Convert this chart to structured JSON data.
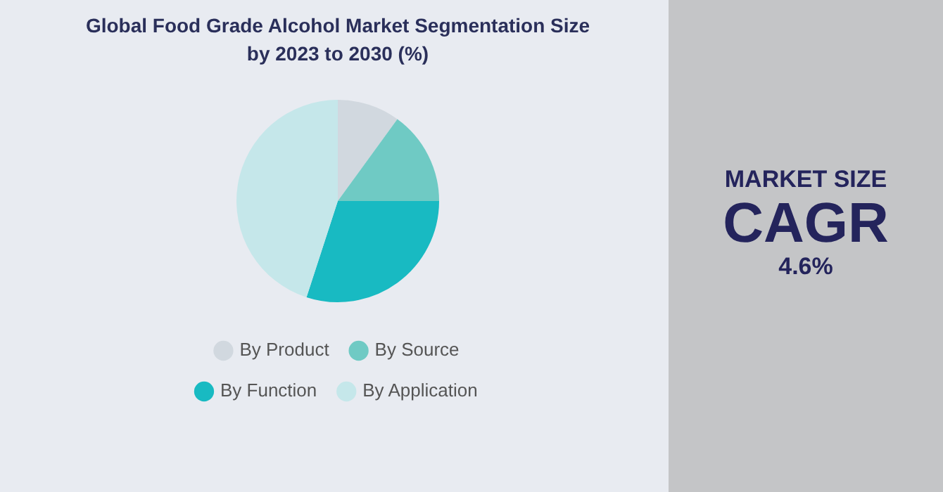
{
  "chart_data": {
    "type": "pie",
    "title": "Global  Food Grade Alcohol Market Segmentation Size by 2023 to 2030 (%)",
    "categories": [
      "By Product",
      "By Source",
      "By Function",
      "By Application"
    ],
    "values": [
      10,
      15,
      30,
      45
    ],
    "colors": [
      "#d1d8df",
      "#6fcac4",
      "#18bac2",
      "#c5e7ea"
    ],
    "legend": "bottom",
    "annotations": [
      "MARKET SIZE",
      "CAGR",
      "4.6%"
    ]
  }
}
